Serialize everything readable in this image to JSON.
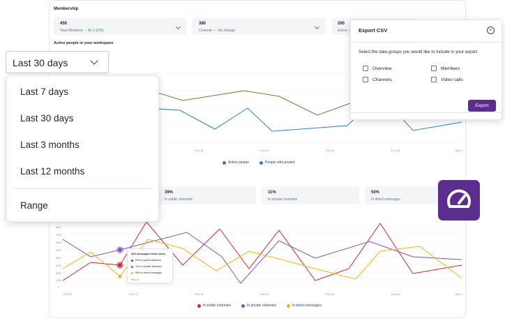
{
  "membership": {
    "title": "Membership",
    "stats": [
      {
        "value": "450",
        "label": "Total Members",
        "delta_icon": "↑",
        "delta": "45 (+10%)"
      },
      {
        "value": "380",
        "label": "Channel",
        "delta_icon": "—",
        "delta": "No change"
      },
      {
        "value": "260",
        "label": "Active",
        "delta_icon": "↓",
        "delta": ""
      }
    ]
  },
  "active_people": {
    "title": "Active people in your workspace",
    "x_labels": [
      "Feb 14",
      "Feb 20",
      "Feb 26",
      "Feb 28",
      "Mar 4"
    ],
    "legend": [
      {
        "label": "Active people",
        "color": "#4f8b2e"
      },
      {
        "label": "People who posted",
        "color": "#2b7fc4"
      }
    ]
  },
  "messages": {
    "stats": [
      {
        "value": "39%",
        "label": "In public channels"
      },
      {
        "value": "11%",
        "label": "In private channels"
      },
      {
        "value": "50%",
        "label": "In direct messages"
      }
    ],
    "y_labels": [
      "80%",
      "70%",
      "60%",
      "50%",
      "40%",
      "30%",
      "20%",
      "10%",
      "0"
    ],
    "x_labels": [
      "Feb 09",
      "Feb 12",
      "Feb 16",
      "Feb 20",
      "Feb 25",
      "Feb 28",
      "Mar 4"
    ],
    "legend": [
      {
        "label": "In public channels",
        "color": "#c8263a"
      },
      {
        "label": "In private channels",
        "color": "#7b52c9"
      },
      {
        "label": "In direct messages",
        "color": "#f2b705"
      }
    ],
    "tooltip": {
      "header": "426 messages from users",
      "rows": [
        {
          "text": "29% in public channels",
          "color": "#c8263a"
        },
        {
          "text": "11% in private channels",
          "color": "#7b52c9"
        },
        {
          "text": "55% in direct messages",
          "color": "#f2b705"
        }
      ],
      "date": "Feb 10"
    }
  },
  "date_select": {
    "value": "Last 30 days",
    "options": [
      "Last 7 days",
      "Last 30 days",
      "Last 3 months",
      "Last 12 months"
    ],
    "extra_option": "Range"
  },
  "export_dialog": {
    "title": "Export CSV",
    "close_glyph": "×",
    "description": "Select the data groups you would like to include in your export.",
    "options": [
      "Overview",
      "Members",
      "Channels",
      "Video calls"
    ],
    "button": "Export"
  },
  "colors": {
    "accent": "#5b2d8e"
  },
  "icons": {
    "badge": "speedometer-icon",
    "close": "close-icon",
    "dropdown": "chevron-down-icon"
  }
}
